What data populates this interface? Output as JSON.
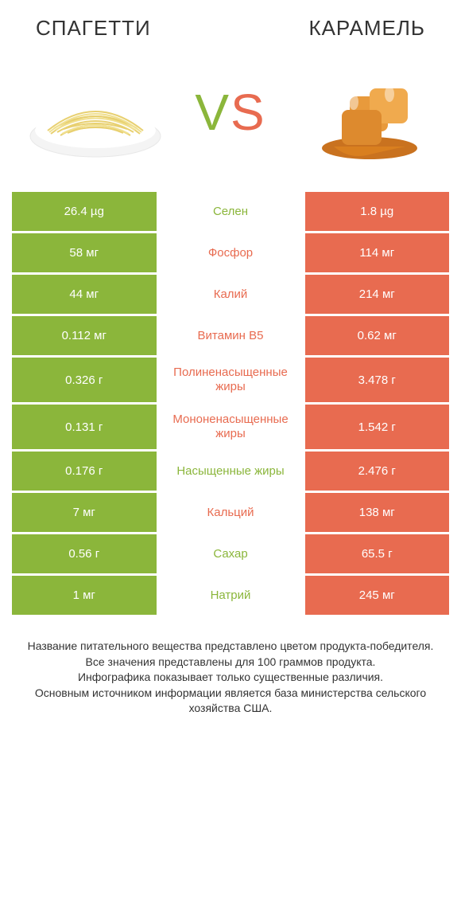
{
  "titles": {
    "left": "СПАГЕТТИ",
    "right": "КАРАМЕЛЬ"
  },
  "vs": {
    "v": "V",
    "s": "S"
  },
  "colors": {
    "green": "#8bb63b",
    "orange": "#e86b50",
    "mid_green_text": "#8bb63b",
    "mid_orange_text": "#e86b50"
  },
  "rows": [
    {
      "left": "26.4 µg",
      "mid": "Селен",
      "right": "1.8 µg",
      "winner": "left"
    },
    {
      "left": "58 мг",
      "mid": "Фосфор",
      "right": "114 мг",
      "winner": "right"
    },
    {
      "left": "44 мг",
      "mid": "Калий",
      "right": "214 мг",
      "winner": "right"
    },
    {
      "left": "0.112 мг",
      "mid": "Витамин B5",
      "right": "0.62 мг",
      "winner": "right"
    },
    {
      "left": "0.326 г",
      "mid": "Полиненасыщенные жиры",
      "right": "3.478 г",
      "winner": "right"
    },
    {
      "left": "0.131 г",
      "mid": "Мононенасыщенные жиры",
      "right": "1.542 г",
      "winner": "right"
    },
    {
      "left": "0.176 г",
      "mid": "Насыщенные жиры",
      "right": "2.476 г",
      "winner": "left"
    },
    {
      "left": "7 мг",
      "mid": "Кальций",
      "right": "138 мг",
      "winner": "right"
    },
    {
      "left": "0.56 г",
      "mid": "Сахар",
      "right": "65.5 г",
      "winner": "left"
    },
    {
      "left": "1 мг",
      "mid": "Натрий",
      "right": "245 мг",
      "winner": "left"
    }
  ],
  "footer": {
    "l1": "Название питательного вещества представлено цветом продукта-победителя.",
    "l2": "Все значения представлены для 100 граммов продукта.",
    "l3": "Инфографика показывает только существенные различия.",
    "l4": "Основным источником информации является база министерства сельского хозяйства США."
  }
}
